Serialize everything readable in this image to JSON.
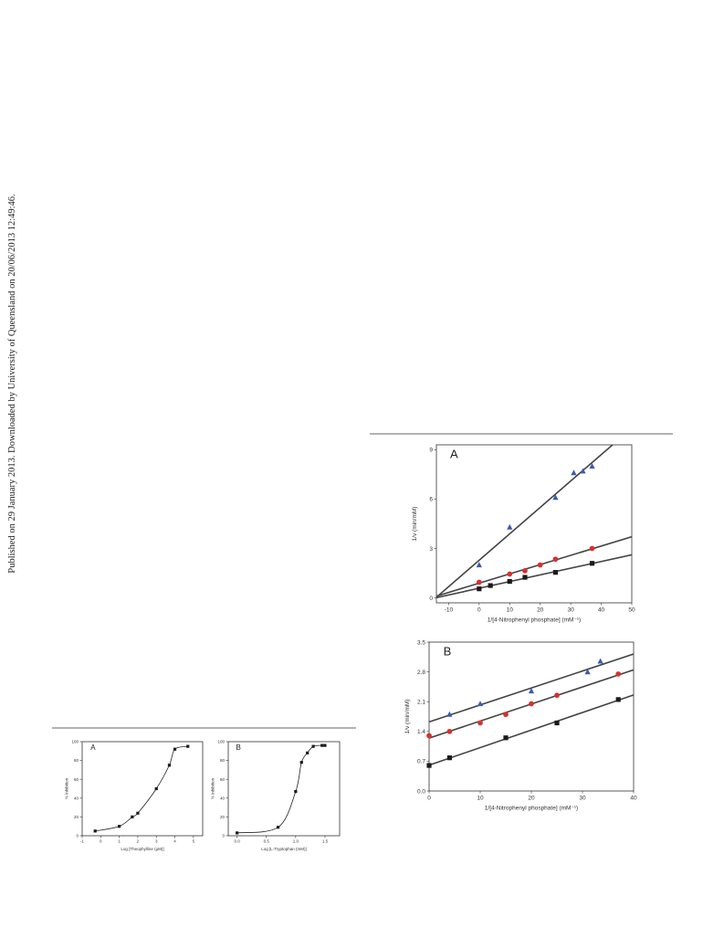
{
  "watermark": "Published on 29 January 2013. Downloaded by University of Queensland on 20/06/2013 12:49:46.",
  "chart_data": [
    {
      "type": "scatter",
      "label": "A",
      "xlabel": "1/[4-Nitrophenyl phosphate] (mM⁻¹)",
      "ylabel": "1/v (min/mM)",
      "xlim": [
        -14,
        50
      ],
      "xticks": [
        -10,
        0,
        10,
        20,
        30,
        40,
        50
      ],
      "ylim": [
        -0.3,
        9.3
      ],
      "yticks": [
        0,
        3,
        6,
        9
      ],
      "series": [
        {
          "marker": "square",
          "color": "#1a1a1a",
          "x": [
            0,
            3.7,
            10,
            15,
            25,
            37
          ],
          "values": [
            0.55,
            0.75,
            1.0,
            1.25,
            1.55,
            2.1
          ]
        },
        {
          "marker": "circle",
          "color": "#d8302c",
          "x": [
            0,
            10,
            15,
            20,
            25,
            37
          ],
          "values": [
            0.95,
            1.45,
            1.65,
            2.0,
            2.35,
            3.0
          ]
        },
        {
          "marker": "triangle",
          "color": "#3a5bb0",
          "x": [
            0,
            10,
            25,
            31,
            34,
            37
          ],
          "values": [
            2.0,
            4.3,
            6.1,
            7.6,
            7.7,
            8.0
          ]
        }
      ]
    },
    {
      "type": "scatter",
      "label": "B",
      "xlabel": "1/[4-Nitrophenyl phosphate] (mM⁻¹)",
      "ylabel": "1/v (min/mM)",
      "xlim": [
        0,
        40
      ],
      "xticks": [
        0,
        10,
        20,
        30,
        40
      ],
      "ylim": [
        0,
        3.5
      ],
      "yticks": [
        {
          "value": 0,
          "label": "0.0"
        },
        0.7,
        1.4,
        2.1,
        2.8,
        3.5
      ],
      "series": [
        {
          "marker": "square",
          "color": "#1a1a1a",
          "x": [
            0,
            4,
            15,
            25,
            37
          ],
          "values": [
            0.6,
            0.78,
            1.25,
            1.6,
            2.15
          ]
        },
        {
          "marker": "circle",
          "color": "#d8302c",
          "x": [
            0,
            4,
            10,
            15,
            20,
            25,
            37
          ],
          "values": [
            1.3,
            1.4,
            1.6,
            1.8,
            2.05,
            2.25,
            2.75
          ]
        },
        {
          "marker": "triangle",
          "color": "#3a5bb0",
          "x": [
            4,
            10,
            20,
            31,
            33.5
          ],
          "values": [
            1.8,
            2.05,
            2.35,
            2.8,
            3.05
          ]
        }
      ]
    },
    {
      "type": "line",
      "label": "A",
      "xlabel": "Log [Theophylline (μM)]",
      "ylabel": "% Inhibition",
      "xlim": [
        -1,
        5.5
      ],
      "xticks": [
        -1,
        0,
        1,
        2,
        3,
        4,
        5
      ],
      "ylim": [
        0,
        100
      ],
      "yticks": [
        0,
        20,
        40,
        60,
        80,
        100
      ],
      "series": [
        {
          "marker": "square",
          "color": "#1a1a1a",
          "x": [
            -0.3,
            1,
            1.7,
            2,
            3,
            3.7,
            4,
            4.7
          ],
          "values": [
            5,
            10,
            20,
            24,
            50,
            75,
            92,
            95
          ]
        }
      ]
    },
    {
      "type": "line",
      "label": "B",
      "xlabel": "Log [L-Tryptophan (mM)]",
      "ylabel": "% Inhibition",
      "xlim": [
        -0.15,
        1.75
      ],
      "xticks": [
        {
          "value": 0,
          "label": "0.0"
        },
        0.5,
        {
          "value": 1,
          "label": "1.0"
        },
        1.5
      ],
      "ylim": [
        0,
        100
      ],
      "yticks": [
        0,
        20,
        40,
        60,
        80,
        100
      ],
      "series": [
        {
          "marker": "square",
          "color": "#1a1a1a",
          "x": [
            0,
            0.7,
            1,
            1.1,
            1.2,
            1.3,
            1.45,
            1.5
          ],
          "values": [
            3,
            9,
            47,
            78,
            88,
            95,
            96,
            96
          ]
        }
      ]
    }
  ]
}
